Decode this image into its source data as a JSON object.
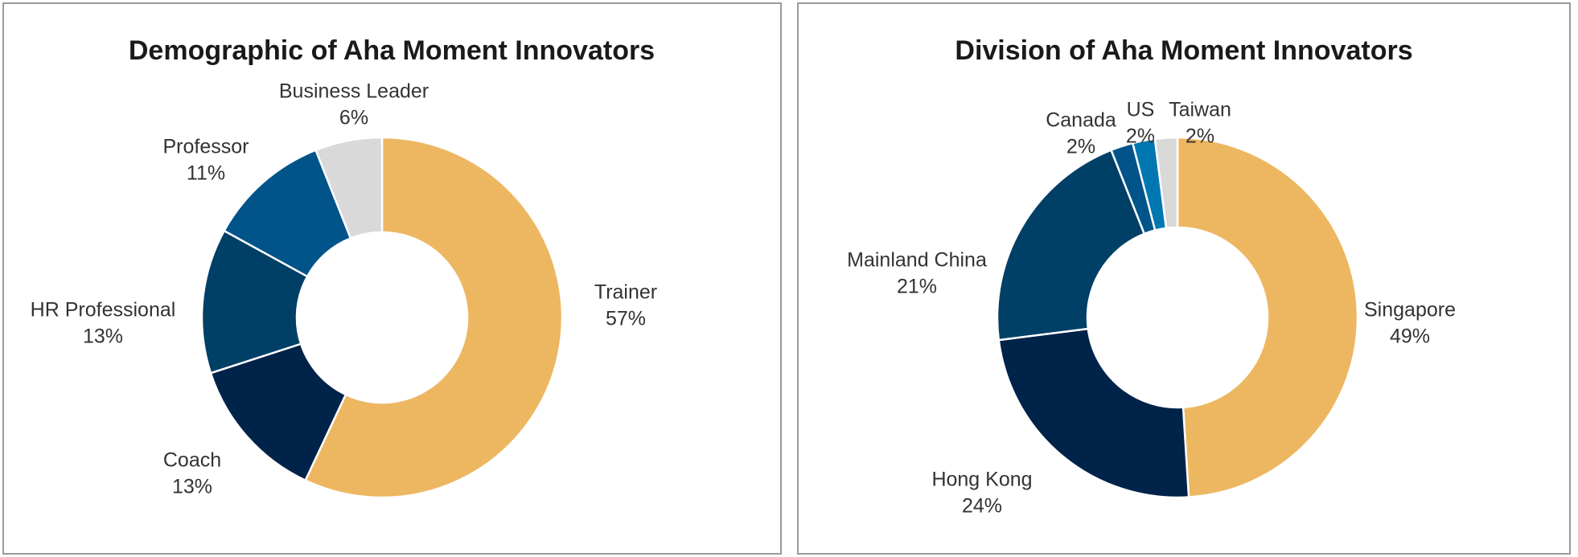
{
  "chart_data": [
    {
      "type": "donut",
      "title": "Demographic of Aha Moment Innovators",
      "categories": [
        "Trainer",
        "Coach",
        "HR Professional",
        "Professor",
        "Business Leader"
      ],
      "values": [
        57,
        13,
        13,
        11,
        6
      ],
      "value_labels": [
        "57%",
        "13%",
        "13%",
        "11%",
        "6%"
      ],
      "colors": [
        "#EDB762",
        "#00234A",
        "#003F66",
        "#00548A",
        "#D9D9D9"
      ]
    },
    {
      "type": "donut",
      "title": "Division of Aha Moment Innovators",
      "categories": [
        "Singapore",
        "Hong Kong",
        "Mainland China",
        "Canada",
        "US",
        "Taiwan"
      ],
      "values": [
        49,
        24,
        21,
        2,
        2,
        2
      ],
      "value_labels": [
        "49%",
        "24%",
        "21%",
        "2%",
        "2%",
        "2%"
      ],
      "colors": [
        "#EDB762",
        "#00234A",
        "#003F66",
        "#00548A",
        "#0077B0",
        "#D9D9D9"
      ]
    }
  ]
}
